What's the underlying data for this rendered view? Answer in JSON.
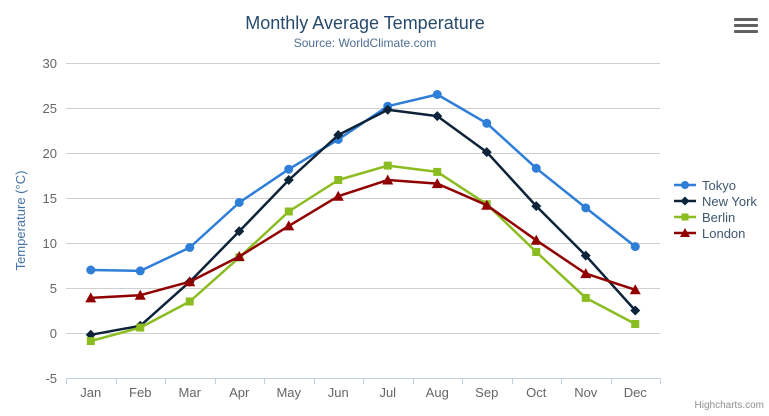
{
  "chart": {
    "credits": "Highcharts.com",
    "export_menu_icon": "hamburger-icon"
  },
  "chart_data": {
    "type": "line",
    "title": "Monthly Average Temperature",
    "subtitle": "Source: WorldClimate.com",
    "xlabel": "",
    "ylabel": "Temperature (°C)",
    "ylim": [
      -5,
      30
    ],
    "ytick_step": 5,
    "grid": true,
    "legend_position": "right",
    "categories": [
      "Jan",
      "Feb",
      "Mar",
      "Apr",
      "May",
      "Jun",
      "Jul",
      "Aug",
      "Sep",
      "Oct",
      "Nov",
      "Dec"
    ],
    "series": [
      {
        "name": "Tokyo",
        "color": "#2f7ed8",
        "marker": "circle",
        "values": [
          7.0,
          6.9,
          9.5,
          14.5,
          18.2,
          21.5,
          25.2,
          26.5,
          23.3,
          18.3,
          13.9,
          9.6
        ]
      },
      {
        "name": "New York",
        "color": "#0d233a",
        "marker": "diamond",
        "values": [
          -0.2,
          0.8,
          5.7,
          11.3,
          17.0,
          22.0,
          24.8,
          24.1,
          20.1,
          14.1,
          8.6,
          2.5
        ]
      },
      {
        "name": "Berlin",
        "color": "#8bbc21",
        "marker": "square",
        "values": [
          -0.9,
          0.6,
          3.5,
          8.4,
          13.5,
          17.0,
          18.6,
          17.9,
          14.3,
          9.0,
          3.9,
          1.0
        ]
      },
      {
        "name": "London",
        "color": "#910000",
        "marker": "triangle",
        "values": [
          3.9,
          4.2,
          5.7,
          8.5,
          11.9,
          15.2,
          17.0,
          16.6,
          14.2,
          10.3,
          6.6,
          4.8
        ]
      }
    ]
  },
  "colors": {
    "title": "#274b6d",
    "subtitle": "#4d6f93",
    "axis_title": "#4572a7",
    "tick_label": "#666666",
    "grid": "#d0d0d0",
    "axis_line": "#c0d0e0",
    "legend_text": "#3e576f",
    "credits": "#909090"
  }
}
